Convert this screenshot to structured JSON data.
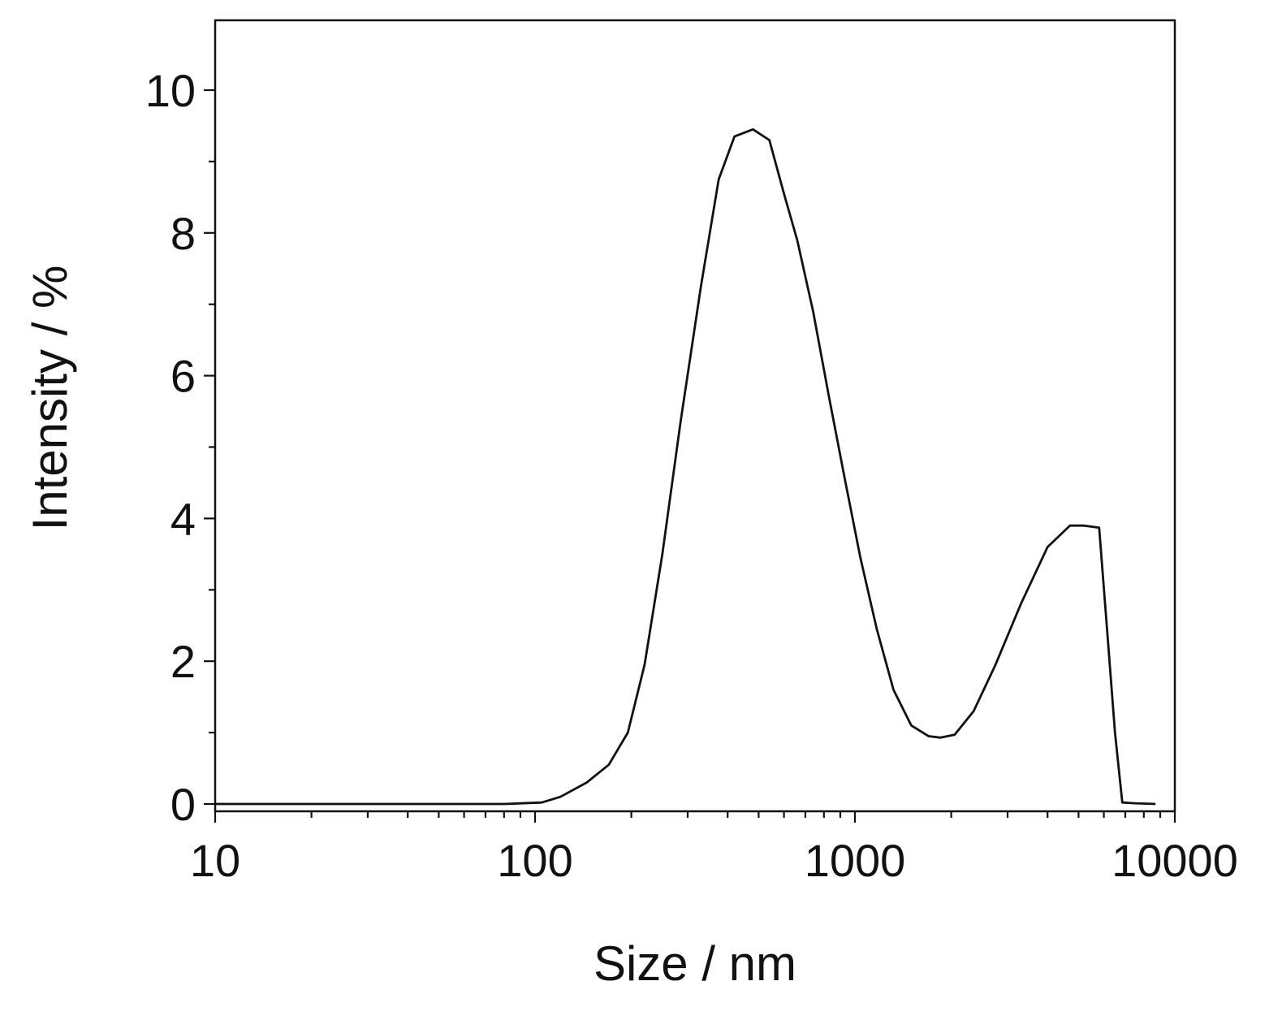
{
  "chart_data": {
    "type": "line",
    "title": "",
    "xlabel": "Size / nm",
    "ylabel": "Intensity / %",
    "xscale": "log",
    "xlim": [
      10,
      10000
    ],
    "ylim": [
      -0.1,
      11
    ],
    "x_ticks": [
      10,
      100,
      1000,
      10000
    ],
    "x_tick_labels": [
      "10",
      "100",
      "1000",
      "10000"
    ],
    "y_ticks": [
      0,
      2,
      4,
      6,
      8,
      10
    ],
    "y_tick_labels": [
      "0",
      "2",
      "4",
      "6",
      "8",
      "10"
    ],
    "grid": false,
    "legend": "none",
    "line_color": "#111111",
    "series": [
      {
        "x": [
          10,
          20,
          50,
          80,
          105,
          120,
          145,
          170,
          195,
          220,
          250,
          285,
          330,
          375,
          420,
          480,
          540,
          600,
          660,
          740,
          830,
          930,
          1040,
          1170,
          1320,
          1500,
          1700,
          1850,
          2050,
          2350,
          2750,
          3300,
          4000,
          4700,
          5200,
          5800,
          6200,
          6500,
          6850,
          7500,
          8700
        ],
        "y": [
          0,
          0,
          0,
          0,
          0.02,
          0.1,
          0.3,
          0.55,
          1.0,
          1.95,
          3.5,
          5.35,
          7.25,
          8.75,
          9.35,
          9.45,
          9.3,
          8.55,
          7.9,
          6.9,
          5.7,
          4.55,
          3.45,
          2.45,
          1.6,
          1.1,
          0.95,
          0.93,
          0.97,
          1.3,
          1.95,
          2.8,
          3.6,
          3.9,
          3.9,
          3.87,
          2.2,
          1.0,
          0.02,
          0.01,
          0.0
        ]
      }
    ]
  }
}
